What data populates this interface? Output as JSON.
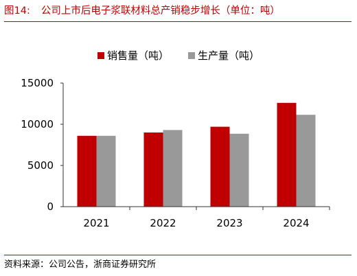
{
  "figure": {
    "number": "图14:",
    "title": "公司上市后电子浆联材料总产销稳步增长（单位：吨）",
    "source": "资料来源：公司公告，浙商证券研究所"
  },
  "chart_data": {
    "type": "bar",
    "categories": [
      "2021",
      "2022",
      "2023",
      "2024"
    ],
    "series": [
      {
        "name": "销售量（吨）",
        "color": "#c00000",
        "values": [
          8600,
          9000,
          9700,
          12600
        ]
      },
      {
        "name": "生产量（吨）",
        "color": "#999999",
        "values": [
          8600,
          9300,
          8850,
          11150
        ]
      }
    ],
    "ylim": [
      0,
      15000
    ],
    "yticks": [
      "0",
      "5000",
      "10000",
      "15000"
    ],
    "legend_position": "top-center",
    "grid": false
  }
}
